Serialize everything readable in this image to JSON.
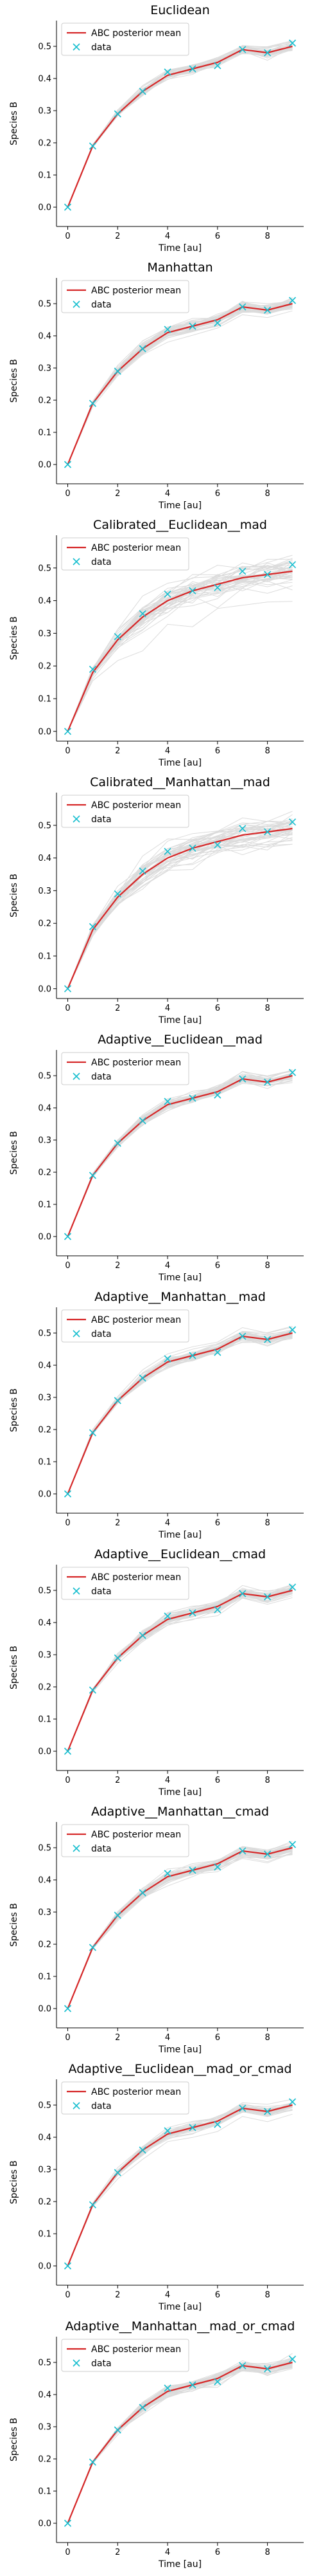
{
  "figure": {
    "legend": {
      "mean_label": "ABC posterior mean",
      "data_label": "data"
    },
    "xlabel": "Time [au]",
    "ylabel": "Species B"
  },
  "colors": {
    "mean": "#d62728",
    "data": "#17becf",
    "samples": "#9a9a9a"
  },
  "chart_data": [
    {
      "type": "line",
      "title": "Euclidean",
      "xlabel": "Time [au]",
      "ylabel": "Species B",
      "xlim": [
        -0.45,
        9.45
      ],
      "ylim": [
        -0.06,
        0.58
      ],
      "xticks": [
        0,
        2,
        4,
        6,
        8
      ],
      "yticks": [
        0.0,
        0.1,
        0.2,
        0.3,
        0.4,
        0.5
      ],
      "legend": "upper left",
      "grid": false,
      "spread": 0.012,
      "x": [
        0,
        1,
        2,
        3,
        4,
        5,
        6,
        7,
        8,
        9
      ],
      "series": [
        {
          "name": "ABC posterior mean",
          "values": [
            0.0,
            0.19,
            0.29,
            0.36,
            0.41,
            0.43,
            0.45,
            0.49,
            0.48,
            0.5
          ]
        },
        {
          "name": "data",
          "values": [
            0.0,
            0.19,
            0.29,
            0.36,
            0.42,
            0.43,
            0.44,
            0.49,
            0.48,
            0.51
          ]
        }
      ]
    },
    {
      "type": "line",
      "title": "Manhattan",
      "xlabel": "Time [au]",
      "ylabel": "Species B",
      "xlim": [
        -0.45,
        9.45
      ],
      "ylim": [
        -0.06,
        0.58
      ],
      "xticks": [
        0,
        2,
        4,
        6,
        8
      ],
      "yticks": [
        0.0,
        0.1,
        0.2,
        0.3,
        0.4,
        0.5
      ],
      "legend": "upper left",
      "grid": false,
      "spread": 0.015,
      "x": [
        0,
        1,
        2,
        3,
        4,
        5,
        6,
        7,
        8,
        9
      ],
      "series": [
        {
          "name": "ABC posterior mean",
          "values": [
            0.0,
            0.19,
            0.29,
            0.36,
            0.41,
            0.43,
            0.45,
            0.49,
            0.48,
            0.5
          ]
        },
        {
          "name": "data",
          "values": [
            0.0,
            0.19,
            0.29,
            0.36,
            0.42,
            0.43,
            0.44,
            0.49,
            0.48,
            0.51
          ]
        }
      ]
    },
    {
      "type": "line",
      "title": "Calibrated__Euclidean__mad",
      "xlabel": "Time [au]",
      "ylabel": "Species B",
      "xlim": [
        -0.45,
        9.45
      ],
      "ylim": [
        -0.03,
        0.6
      ],
      "xticks": [
        0,
        2,
        4,
        6,
        8
      ],
      "yticks": [
        0.0,
        0.1,
        0.2,
        0.3,
        0.4,
        0.5
      ],
      "legend": "upper left",
      "grid": false,
      "spread": 0.035,
      "x": [
        0,
        1,
        2,
        3,
        4,
        5,
        6,
        7,
        8,
        9
      ],
      "series": [
        {
          "name": "ABC posterior mean",
          "values": [
            0.0,
            0.18,
            0.28,
            0.35,
            0.4,
            0.43,
            0.45,
            0.47,
            0.48,
            0.49
          ]
        },
        {
          "name": "data",
          "values": [
            0.0,
            0.19,
            0.29,
            0.36,
            0.42,
            0.43,
            0.44,
            0.49,
            0.48,
            0.51
          ]
        }
      ]
    },
    {
      "type": "line",
      "title": "Calibrated__Manhattan__mad",
      "xlabel": "Time [au]",
      "ylabel": "Species B",
      "xlim": [
        -0.45,
        9.45
      ],
      "ylim": [
        -0.03,
        0.6
      ],
      "xticks": [
        0,
        2,
        4,
        6,
        8
      ],
      "yticks": [
        0.0,
        0.1,
        0.2,
        0.3,
        0.4,
        0.5
      ],
      "legend": "upper left",
      "grid": false,
      "spread": 0.03,
      "x": [
        0,
        1,
        2,
        3,
        4,
        5,
        6,
        7,
        8,
        9
      ],
      "series": [
        {
          "name": "ABC posterior mean",
          "values": [
            0.0,
            0.18,
            0.28,
            0.35,
            0.4,
            0.43,
            0.45,
            0.47,
            0.48,
            0.49
          ]
        },
        {
          "name": "data",
          "values": [
            0.0,
            0.19,
            0.29,
            0.36,
            0.42,
            0.43,
            0.44,
            0.49,
            0.48,
            0.51
          ]
        }
      ]
    },
    {
      "type": "line",
      "title": "Adaptive__Euclidean__mad",
      "xlabel": "Time [au]",
      "ylabel": "Species B",
      "xlim": [
        -0.45,
        9.45
      ],
      "ylim": [
        -0.06,
        0.58
      ],
      "xticks": [
        0,
        2,
        4,
        6,
        8
      ],
      "yticks": [
        0.0,
        0.1,
        0.2,
        0.3,
        0.4,
        0.5
      ],
      "legend": "upper left",
      "grid": false,
      "spread": 0.012,
      "x": [
        0,
        1,
        2,
        3,
        4,
        5,
        6,
        7,
        8,
        9
      ],
      "series": [
        {
          "name": "ABC posterior mean",
          "values": [
            0.0,
            0.19,
            0.29,
            0.36,
            0.41,
            0.43,
            0.45,
            0.49,
            0.48,
            0.5
          ]
        },
        {
          "name": "data",
          "values": [
            0.0,
            0.19,
            0.29,
            0.36,
            0.42,
            0.43,
            0.44,
            0.49,
            0.48,
            0.51
          ]
        }
      ]
    },
    {
      "type": "line",
      "title": "Adaptive__Manhattan__mad",
      "xlabel": "Time [au]",
      "ylabel": "Species B",
      "xlim": [
        -0.45,
        9.45
      ],
      "ylim": [
        -0.06,
        0.58
      ],
      "xticks": [
        0,
        2,
        4,
        6,
        8
      ],
      "yticks": [
        0.0,
        0.1,
        0.2,
        0.3,
        0.4,
        0.5
      ],
      "legend": "upper left",
      "grid": false,
      "spread": 0.012,
      "x": [
        0,
        1,
        2,
        3,
        4,
        5,
        6,
        7,
        8,
        9
      ],
      "series": [
        {
          "name": "ABC posterior mean",
          "values": [
            0.0,
            0.19,
            0.29,
            0.36,
            0.41,
            0.43,
            0.45,
            0.49,
            0.48,
            0.5
          ]
        },
        {
          "name": "data",
          "values": [
            0.0,
            0.19,
            0.29,
            0.36,
            0.42,
            0.43,
            0.44,
            0.49,
            0.48,
            0.51
          ]
        }
      ]
    },
    {
      "type": "line",
      "title": "Adaptive__Euclidean__cmad",
      "xlabel": "Time [au]",
      "ylabel": "Species B",
      "xlim": [
        -0.45,
        9.45
      ],
      "ylim": [
        -0.06,
        0.58
      ],
      "xticks": [
        0,
        2,
        4,
        6,
        8
      ],
      "yticks": [
        0.0,
        0.1,
        0.2,
        0.3,
        0.4,
        0.5
      ],
      "legend": "upper left",
      "grid": false,
      "spread": 0.012,
      "x": [
        0,
        1,
        2,
        3,
        4,
        5,
        6,
        7,
        8,
        9
      ],
      "series": [
        {
          "name": "ABC posterior mean",
          "values": [
            0.0,
            0.19,
            0.29,
            0.36,
            0.41,
            0.43,
            0.45,
            0.49,
            0.48,
            0.5
          ]
        },
        {
          "name": "data",
          "values": [
            0.0,
            0.19,
            0.29,
            0.36,
            0.42,
            0.43,
            0.44,
            0.49,
            0.48,
            0.51
          ]
        }
      ]
    },
    {
      "type": "line",
      "title": "Adaptive__Manhattan__cmad",
      "xlabel": "Time [au]",
      "ylabel": "Species B",
      "xlim": [
        -0.45,
        9.45
      ],
      "ylim": [
        -0.06,
        0.58
      ],
      "xticks": [
        0,
        2,
        4,
        6,
        8
      ],
      "yticks": [
        0.0,
        0.1,
        0.2,
        0.3,
        0.4,
        0.5
      ],
      "legend": "upper left",
      "grid": false,
      "spread": 0.012,
      "x": [
        0,
        1,
        2,
        3,
        4,
        5,
        6,
        7,
        8,
        9
      ],
      "series": [
        {
          "name": "ABC posterior mean",
          "values": [
            0.0,
            0.19,
            0.29,
            0.36,
            0.41,
            0.43,
            0.45,
            0.49,
            0.48,
            0.5
          ]
        },
        {
          "name": "data",
          "values": [
            0.0,
            0.19,
            0.29,
            0.36,
            0.42,
            0.43,
            0.44,
            0.49,
            0.48,
            0.51
          ]
        }
      ]
    },
    {
      "type": "line",
      "title": "Adaptive__Euclidean__mad_or_cmad",
      "xlabel": "Time [au]",
      "ylabel": "Species B",
      "xlim": [
        -0.45,
        9.45
      ],
      "ylim": [
        -0.06,
        0.58
      ],
      "xticks": [
        0,
        2,
        4,
        6,
        8
      ],
      "yticks": [
        0.0,
        0.1,
        0.2,
        0.3,
        0.4,
        0.5
      ],
      "legend": "upper left",
      "grid": false,
      "spread": 0.012,
      "x": [
        0,
        1,
        2,
        3,
        4,
        5,
        6,
        7,
        8,
        9
      ],
      "series": [
        {
          "name": "ABC posterior mean",
          "values": [
            0.0,
            0.19,
            0.29,
            0.36,
            0.41,
            0.43,
            0.45,
            0.49,
            0.48,
            0.5
          ]
        },
        {
          "name": "data",
          "values": [
            0.0,
            0.19,
            0.29,
            0.36,
            0.42,
            0.43,
            0.44,
            0.49,
            0.48,
            0.51
          ]
        }
      ]
    },
    {
      "type": "line",
      "title": "Adaptive__Manhattan__mad_or_cmad",
      "xlabel": "Time [au]",
      "ylabel": "Species B",
      "xlim": [
        -0.45,
        9.45
      ],
      "ylim": [
        -0.06,
        0.58
      ],
      "xticks": [
        0,
        2,
        4,
        6,
        8
      ],
      "yticks": [
        0.0,
        0.1,
        0.2,
        0.3,
        0.4,
        0.5
      ],
      "legend": "upper left",
      "grid": false,
      "spread": 0.012,
      "x": [
        0,
        1,
        2,
        3,
        4,
        5,
        6,
        7,
        8,
        9
      ],
      "series": [
        {
          "name": "ABC posterior mean",
          "values": [
            0.0,
            0.19,
            0.29,
            0.36,
            0.41,
            0.43,
            0.45,
            0.49,
            0.48,
            0.5
          ]
        },
        {
          "name": "data",
          "values": [
            0.0,
            0.19,
            0.29,
            0.36,
            0.42,
            0.43,
            0.44,
            0.49,
            0.48,
            0.51
          ]
        }
      ]
    }
  ]
}
